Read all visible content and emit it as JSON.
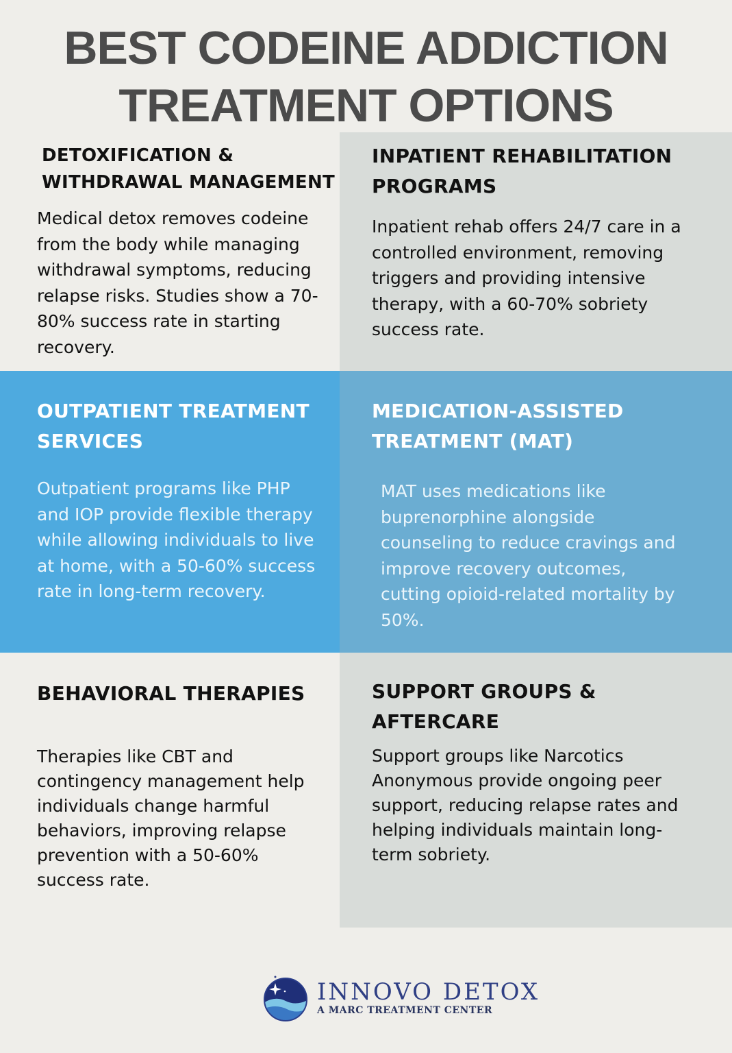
{
  "title": {
    "line1": "BEST CODEINE ADDICTION",
    "line2": "TREATMENT OPTIONS"
  },
  "colors": {
    "background": "#efeeea",
    "gray_panel": "#d8dcd9",
    "blue_left": "#4eaadf",
    "blue_right": "#6badd2",
    "title": "#4b4b4b"
  },
  "sections": [
    {
      "heading": "DETOXIFICATION & WITHDRAWAL MANAGEMENT",
      "body": "Medical detox removes codeine from the body while managing withdrawal symptoms, reducing relapse risks. Studies show a 70-80% success rate in starting recovery."
    },
    {
      "heading": "INPATIENT REHABILITATION PROGRAMS",
      "body": "Inpatient rehab offers 24/7 care in a controlled environment, removing triggers and providing intensive therapy, with a 60-70% sobriety success rate."
    },
    {
      "heading": "OUTPATIENT TREATMENT SERVICES",
      "body": "Outpatient programs like PHP and IOP provide flexible therapy while allowing individuals to live at home, with a 50-60% success rate in long-term recovery."
    },
    {
      "heading": "MEDICATION-ASSISTED TREATMENT (MAT)",
      "body": "MAT uses medications like buprenorphine alongside counseling to reduce cravings and improve recovery outcomes, cutting opioid-related mortality by 50%."
    },
    {
      "heading": "BEHAVIORAL THERAPIES",
      "body": "Therapies like CBT and contingency management help individuals change harmful behaviors, improving relapse prevention with a 50-60% success rate."
    },
    {
      "heading": "SUPPORT GROUPS & AFTERCARE",
      "body": "Support groups like Narcotics Anonymous provide ongoing peer support, reducing relapse rates and helping individuals maintain long-term sobriety."
    }
  ],
  "logo": {
    "name": "INNOVO DETOX",
    "tagline": "A MARC TREATMENT CENTER",
    "icon": "globe-wave-star-icon"
  }
}
